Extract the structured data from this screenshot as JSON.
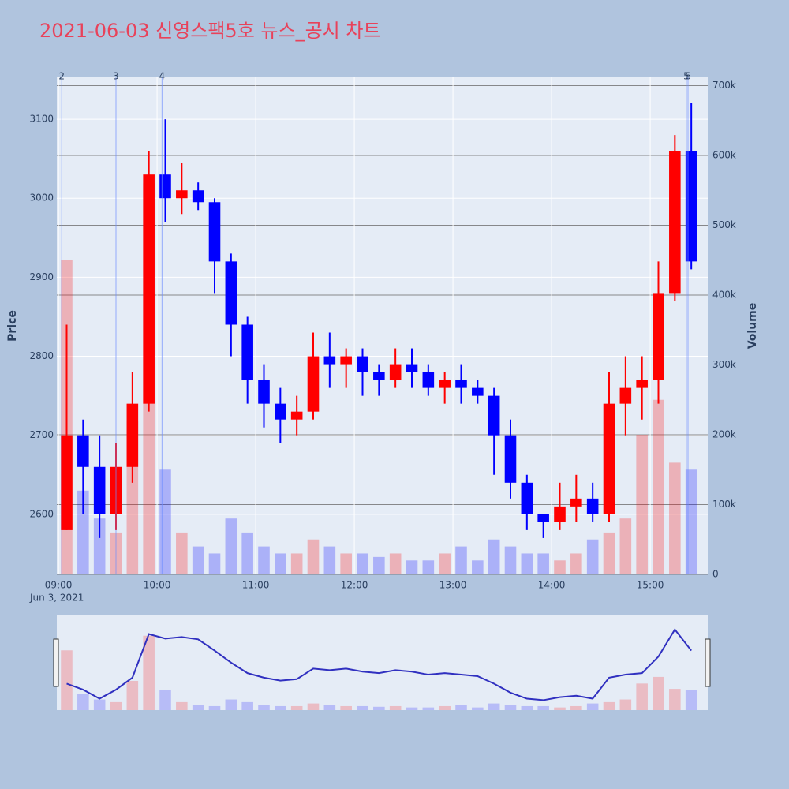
{
  "chart_data": {
    "type": "candlestick",
    "title": "2021-06-03 신영스팩5호 뉴스_공시 차트",
    "x_subtitle": "Jun 3, 2021",
    "y_title": "Price",
    "y2_title": "Volume",
    "up_color": "#ff0000",
    "down_color": "#0000ff",
    "x": [
      "09:00",
      "09:10",
      "09:20",
      "09:30",
      "09:40",
      "09:50",
      "10:00",
      "10:10",
      "10:20",
      "10:30",
      "10:40",
      "10:50",
      "11:00",
      "11:10",
      "11:20",
      "11:30",
      "11:40",
      "11:50",
      "12:00",
      "12:10",
      "12:20",
      "12:30",
      "12:40",
      "12:50",
      "13:00",
      "13:10",
      "13:20",
      "13:30",
      "13:40",
      "13:50",
      "14:00",
      "14:10",
      "14:20",
      "14:30",
      "14:40",
      "14:50",
      "15:00",
      "15:10",
      "15:20"
    ],
    "open": [
      2580,
      2700,
      2660,
      2600,
      2660,
      2740,
      3030,
      3000,
      3010,
      2995,
      2920,
      2840,
      2770,
      2740,
      2720,
      2730,
      2800,
      2790,
      2800,
      2780,
      2770,
      2790,
      2780,
      2760,
      2770,
      2760,
      2750,
      2700,
      2640,
      2600,
      2590,
      2610,
      2620,
      2600,
      2740,
      2760,
      2770,
      2880,
      3060
    ],
    "high": [
      2840,
      2720,
      2700,
      2690,
      2780,
      3060,
      3100,
      3045,
      3020,
      3000,
      2930,
      2850,
      2790,
      2760,
      2750,
      2830,
      2830,
      2810,
      2810,
      2790,
      2810,
      2810,
      2790,
      2780,
      2790,
      2770,
      2760,
      2720,
      2650,
      2600,
      2640,
      2650,
      2640,
      2780,
      2800,
      2800,
      2920,
      3080,
      3120
    ],
    "low": [
      2580,
      2600,
      2570,
      2580,
      2640,
      2730,
      2970,
      2980,
      2985,
      2880,
      2800,
      2740,
      2710,
      2690,
      2700,
      2720,
      2760,
      2760,
      2750,
      2750,
      2760,
      2760,
      2750,
      2740,
      2740,
      2740,
      2650,
      2620,
      2580,
      2570,
      2580,
      2590,
      2590,
      2590,
      2700,
      2720,
      2740,
      2870,
      2910
    ],
    "close": [
      2700,
      2660,
      2600,
      2660,
      2740,
      3030,
      3000,
      3010,
      2995,
      2920,
      2840,
      2770,
      2740,
      2720,
      2730,
      2800,
      2790,
      2800,
      2780,
      2770,
      2790,
      2780,
      2760,
      2770,
      2760,
      2750,
      2700,
      2640,
      2600,
      2590,
      2610,
      2620,
      2600,
      2740,
      2760,
      2770,
      2880,
      3060,
      2920
    ],
    "volume": [
      450000,
      120000,
      80000,
      60000,
      220000,
      560000,
      150000,
      60000,
      40000,
      30000,
      80000,
      60000,
      40000,
      30000,
      30000,
      50000,
      40000,
      30000,
      30000,
      25000,
      30000,
      20000,
      20000,
      30000,
      40000,
      20000,
      50000,
      40000,
      30000,
      30000,
      20000,
      30000,
      50000,
      60000,
      80000,
      200000,
      250000,
      160000,
      150000
    ],
    "xlim": [
      "08:59",
      "15:35"
    ],
    "xticks": [
      "09:00",
      "10:00",
      "11:00",
      "12:00",
      "13:00",
      "14:00",
      "15:00"
    ],
    "ylim": [
      2524,
      3154
    ],
    "yticks": [
      2600,
      2700,
      2800,
      2900,
      3000,
      3100
    ],
    "y2lim": [
      0,
      713000
    ],
    "y2ticks": [
      0,
      {
        "value": 100000,
        "label": "100k"
      },
      {
        "value": 200000,
        "label": "200k"
      },
      {
        "value": 300000,
        "label": "300k"
      },
      {
        "value": 400000,
        "label": "400k"
      },
      {
        "value": 500000,
        "label": "500k"
      },
      {
        "value": 600000,
        "label": "600k"
      },
      {
        "value": 700000,
        "label": "700k"
      }
    ],
    "events": [
      {
        "label": "2",
        "x": "09:02"
      },
      {
        "label": "3",
        "x": "09:35"
      },
      {
        "label": "4",
        "x": "10:03"
      },
      {
        "label": "5",
        "x": "15:22"
      },
      {
        "label": "6",
        "x": "15:23"
      }
    ]
  }
}
